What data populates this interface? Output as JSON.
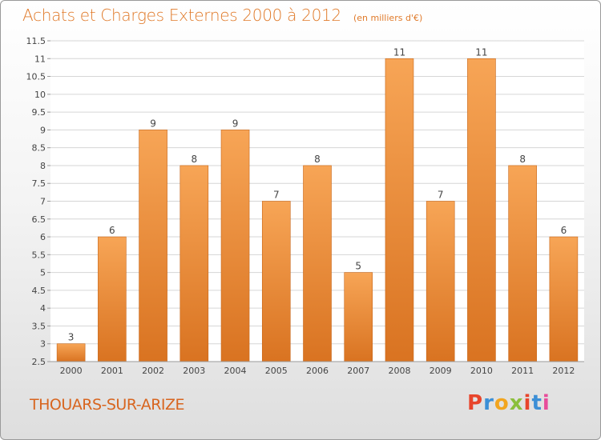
{
  "header": {
    "title": "Achats et Charges Externes 2000 à 2012",
    "subtitle": "(en milliers d'€)"
  },
  "footer": {
    "commune": "THOUARS-SUR-ARIZE",
    "logo_text": "Proxiti",
    "logo_colors": [
      "#e8452c",
      "#3c8fd6",
      "#f2a51f",
      "#8bbf3c",
      "#e8452c",
      "#3c8fd6",
      "#e84d9b"
    ]
  },
  "colors": {
    "bar_top": "#f7a556",
    "bar_bottom": "#d97321",
    "bar_edge": "#c86618",
    "grid": "#d6d6d6",
    "axis_text": "#444444"
  },
  "chart_data": {
    "type": "bar",
    "title": "Achats et Charges Externes 2000 à 2012",
    "subtitle": "(en milliers d'€)",
    "categories": [
      "2000",
      "2001",
      "2002",
      "2003",
      "2004",
      "2005",
      "2006",
      "2007",
      "2008",
      "2009",
      "2010",
      "2011",
      "2012"
    ],
    "values": [
      3,
      6,
      9,
      8,
      9,
      7,
      8,
      5,
      11,
      7,
      11,
      8,
      6
    ],
    "data_labels": [
      "3",
      "6",
      "9",
      "8",
      "9",
      "7",
      "8",
      "5",
      "11",
      "7",
      "11",
      "8",
      "6"
    ],
    "ylim": [
      2.5,
      11.5
    ],
    "yticks": [
      2.5,
      3,
      3.5,
      4,
      4.5,
      5,
      5.5,
      6,
      6.5,
      7,
      7.5,
      8,
      8.5,
      9,
      9.5,
      10,
      10.5,
      11,
      11.5
    ],
    "ytick_labels": [
      "2.5",
      "3",
      "3.5",
      "4",
      "4.5",
      "5",
      "5.5",
      "6",
      "6.5",
      "7",
      "7.5",
      "8",
      "8.5",
      "9",
      "9.5",
      "10",
      "10.5",
      "11",
      "11.5"
    ],
    "grid": true,
    "legend": "none"
  }
}
